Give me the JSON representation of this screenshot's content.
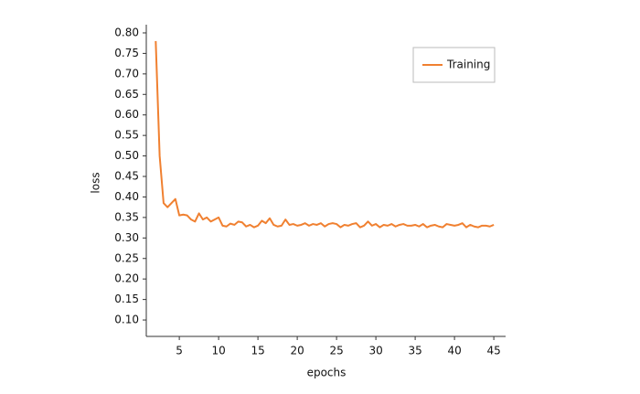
{
  "chart_data": {
    "type": "line",
    "xlabel": "epochs",
    "ylabel": "loss",
    "x": [
      2,
      2.5,
      3,
      3.5,
      4,
      4.5,
      5,
      5.5,
      6,
      6.5,
      7,
      7.5,
      8,
      8.5,
      9,
      9.5,
      10,
      10.5,
      11,
      11.5,
      12,
      12.5,
      13,
      13.5,
      14,
      14.5,
      15,
      15.5,
      16,
      16.5,
      17,
      17.5,
      18,
      18.5,
      19,
      19.5,
      20,
      20.5,
      21,
      21.5,
      22,
      22.5,
      23,
      23.5,
      24,
      24.5,
      25,
      25.5,
      26,
      26.5,
      27,
      27.5,
      28,
      28.5,
      29,
      29.5,
      30,
      30.5,
      31,
      31.5,
      32,
      32.5,
      33,
      33.5,
      34,
      34.5,
      35,
      35.5,
      36,
      36.5,
      37,
      37.5,
      38,
      38.5,
      39,
      39.5,
      40,
      40.5,
      41,
      41.5,
      42,
      42.5,
      43,
      43.5,
      44,
      44.5,
      45
    ],
    "series": [
      {
        "name": "Training",
        "color": "#f08030",
        "values": [
          0.78,
          0.5,
          0.385,
          0.375,
          0.385,
          0.395,
          0.355,
          0.357,
          0.355,
          0.345,
          0.34,
          0.36,
          0.345,
          0.35,
          0.34,
          0.345,
          0.35,
          0.33,
          0.328,
          0.335,
          0.332,
          0.34,
          0.338,
          0.328,
          0.332,
          0.326,
          0.33,
          0.342,
          0.336,
          0.348,
          0.332,
          0.328,
          0.33,
          0.345,
          0.332,
          0.334,
          0.33,
          0.332,
          0.336,
          0.33,
          0.334,
          0.332,
          0.336,
          0.328,
          0.334,
          0.336,
          0.334,
          0.326,
          0.332,
          0.33,
          0.334,
          0.336,
          0.326,
          0.33,
          0.34,
          0.33,
          0.334,
          0.326,
          0.332,
          0.33,
          0.334,
          0.328,
          0.332,
          0.334,
          0.33,
          0.33,
          0.332,
          0.328,
          0.334,
          0.326,
          0.33,
          0.332,
          0.328,
          0.326,
          0.334,
          0.332,
          0.33,
          0.332,
          0.336,
          0.326,
          0.332,
          0.328,
          0.326,
          0.33,
          0.33,
          0.328,
          0.332
        ]
      }
    ],
    "xlim": [
      0.8,
      46.5
    ],
    "xticks": [
      5,
      10,
      15,
      20,
      25,
      30,
      35,
      40,
      45
    ],
    "ylim": [
      0.06,
      0.82
    ],
    "yticks": [
      {
        "value": 0.1,
        "label": "0.10"
      },
      0.15,
      {
        "value": 0.2,
        "label": "0.20"
      },
      0.25,
      {
        "value": 0.3,
        "label": "0.30"
      },
      0.35,
      {
        "value": 0.4,
        "label": "0.40"
      },
      0.45,
      {
        "value": 0.5,
        "label": "0.50"
      },
      0.55,
      {
        "value": 0.6,
        "label": "0.60"
      },
      0.65,
      {
        "value": 0.7,
        "label": "0.70"
      },
      0.75,
      {
        "value": 0.8,
        "label": "0.80"
      }
    ],
    "legend": "upper right",
    "grid": false
  }
}
